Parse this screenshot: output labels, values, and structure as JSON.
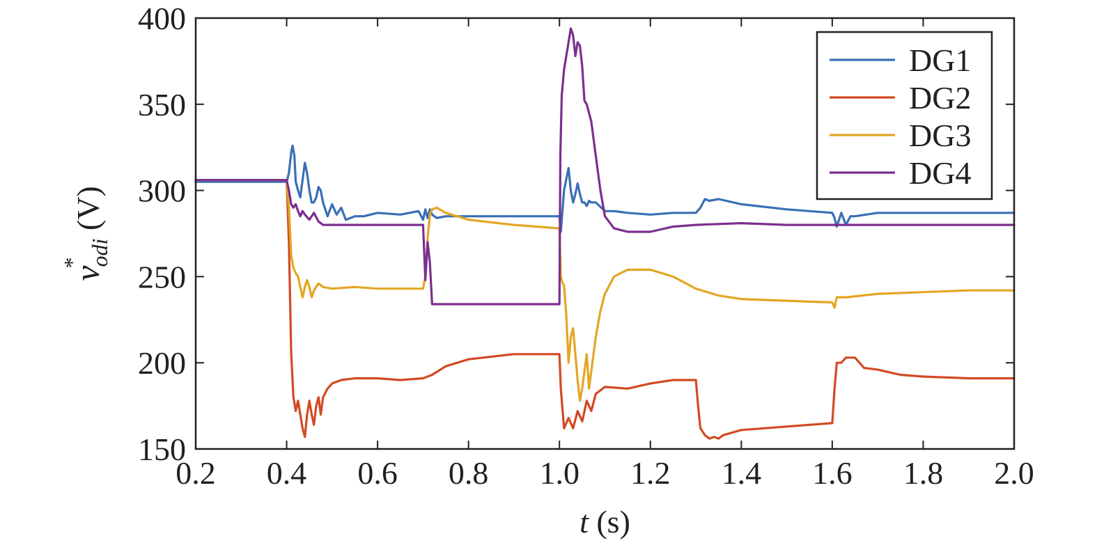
{
  "chart_data": {
    "type": "line",
    "title": "",
    "xlabel": {
      "var": "t",
      "unit": " (s)"
    },
    "ylabel": {
      "var": "v",
      "sup": "*",
      "sub": "odi",
      "unit": " (V)"
    },
    "xlim": [
      0.2,
      2.0
    ],
    "ylim": [
      150,
      400
    ],
    "xticks": [
      "0.2",
      "0.4",
      "0.6",
      "0.8",
      "1.0",
      "1.2",
      "1.4",
      "1.6",
      "1.8",
      "2.0"
    ],
    "yticks": [
      "150",
      "200",
      "250",
      "300",
      "350",
      "400"
    ],
    "grid": false,
    "legend": "top-right",
    "series": [
      {
        "name": "DG1",
        "color": "#3a6fb4",
        "x": [
          0.2,
          0.4,
          0.405,
          0.41,
          0.413,
          0.417,
          0.42,
          0.425,
          0.43,
          0.435,
          0.44,
          0.445,
          0.45,
          0.455,
          0.46,
          0.465,
          0.47,
          0.475,
          0.48,
          0.49,
          0.5,
          0.51,
          0.52,
          0.53,
          0.55,
          0.57,
          0.6,
          0.65,
          0.69,
          0.7,
          0.705,
          0.71,
          0.715,
          0.72,
          0.73,
          0.75,
          0.8,
          0.9,
          1.0,
          1.003,
          1.01,
          1.02,
          1.025,
          1.03,
          1.035,
          1.04,
          1.045,
          1.05,
          1.055,
          1.06,
          1.065,
          1.07,
          1.08,
          1.1,
          1.12,
          1.15,
          1.2,
          1.25,
          1.3,
          1.31,
          1.32,
          1.33,
          1.35,
          1.4,
          1.5,
          1.6,
          1.605,
          1.61,
          1.62,
          1.63,
          1.64,
          1.65,
          1.7,
          1.8,
          2.0
        ],
        "y": [
          305,
          305,
          310,
          322,
          326,
          320,
          305,
          300,
          296,
          306,
          316,
          310,
          300,
          293,
          293,
          296,
          302,
          300,
          293,
          285,
          292,
          286,
          290,
          283,
          285,
          285,
          287,
          286,
          288,
          283,
          289,
          284,
          289,
          286,
          284,
          285,
          285,
          285,
          285,
          276,
          300,
          313,
          300,
          293,
          298,
          304,
          298,
          293,
          293,
          291,
          294,
          293,
          293,
          288,
          288,
          287,
          286,
          287,
          287,
          290,
          295,
          294,
          295,
          292,
          289,
          287,
          284,
          279,
          287,
          280,
          285,
          285,
          287,
          287,
          287
        ]
      },
      {
        "name": "DG2",
        "color": "#d24a24",
        "x": [
          0.2,
          0.4,
          0.405,
          0.41,
          0.415,
          0.42,
          0.425,
          0.43,
          0.435,
          0.44,
          0.445,
          0.45,
          0.455,
          0.46,
          0.465,
          0.47,
          0.475,
          0.48,
          0.49,
          0.5,
          0.52,
          0.55,
          0.6,
          0.65,
          0.7,
          0.72,
          0.75,
          0.8,
          0.9,
          1.0,
          1.003,
          1.01,
          1.02,
          1.03,
          1.04,
          1.05,
          1.06,
          1.07,
          1.08,
          1.1,
          1.15,
          1.2,
          1.25,
          1.3,
          1.305,
          1.31,
          1.32,
          1.33,
          1.34,
          1.35,
          1.36,
          1.4,
          1.5,
          1.6,
          1.605,
          1.61,
          1.62,
          1.63,
          1.64,
          1.65,
          1.67,
          1.7,
          1.75,
          1.8,
          1.9,
          2.0
        ],
        "y": [
          306,
          306,
          270,
          205,
          180,
          172,
          178,
          170,
          162,
          157,
          170,
          178,
          170,
          164,
          175,
          180,
          170,
          180,
          185,
          188,
          190,
          191,
          191,
          190,
          191,
          193,
          198,
          202,
          205,
          205,
          185,
          162,
          168,
          162,
          172,
          166,
          178,
          172,
          182,
          186,
          185,
          188,
          190,
          190,
          175,
          162,
          158,
          156,
          157,
          156,
          158,
          161,
          163,
          165,
          185,
          200,
          200,
          203,
          203,
          203,
          197,
          196,
          193,
          192,
          191,
          191
        ]
      },
      {
        "name": "DG3",
        "color": "#e3a623",
        "x": [
          0.2,
          0.4,
          0.405,
          0.41,
          0.415,
          0.42,
          0.425,
          0.43,
          0.435,
          0.44,
          0.445,
          0.45,
          0.455,
          0.46,
          0.47,
          0.48,
          0.5,
          0.55,
          0.6,
          0.65,
          0.7,
          0.705,
          0.71,
          0.715,
          0.72,
          0.73,
          0.75,
          0.8,
          0.9,
          1.0,
          1.003,
          1.007,
          1.01,
          1.015,
          1.02,
          1.025,
          1.03,
          1.035,
          1.04,
          1.045,
          1.05,
          1.055,
          1.06,
          1.065,
          1.07,
          1.08,
          1.09,
          1.1,
          1.12,
          1.15,
          1.2,
          1.25,
          1.3,
          1.35,
          1.4,
          1.5,
          1.6,
          1.605,
          1.61,
          1.63,
          1.7,
          1.8,
          1.9,
          2.0
        ],
        "y": [
          306,
          306,
          290,
          262,
          255,
          252,
          250,
          244,
          238,
          244,
          248,
          244,
          238,
          242,
          246,
          244,
          243,
          244,
          243,
          243,
          243,
          250,
          272,
          286,
          289,
          290,
          287,
          283,
          280,
          278,
          250,
          246,
          245,
          228,
          200,
          215,
          220,
          205,
          190,
          178,
          185,
          195,
          205,
          185,
          195,
          215,
          230,
          240,
          250,
          254,
          254,
          250,
          243,
          239,
          237,
          236,
          235,
          232,
          238,
          238,
          240,
          241,
          242,
          242
        ]
      },
      {
        "name": "DG4",
        "color": "#7b2f8e",
        "x": [
          0.2,
          0.4,
          0.405,
          0.41,
          0.415,
          0.42,
          0.425,
          0.43,
          0.435,
          0.44,
          0.45,
          0.46,
          0.47,
          0.48,
          0.5,
          0.55,
          0.6,
          0.7,
          0.705,
          0.71,
          0.715,
          0.72,
          0.725,
          0.73,
          0.75,
          0.8,
          0.9,
          1.0,
          1.002,
          1.005,
          1.01,
          1.02,
          1.025,
          1.03,
          1.035,
          1.04,
          1.045,
          1.05,
          1.055,
          1.06,
          1.07,
          1.08,
          1.09,
          1.1,
          1.12,
          1.15,
          1.2,
          1.25,
          1.3,
          1.4,
          1.5,
          1.6,
          1.7,
          1.8,
          1.9,
          2.0
        ],
        "y": [
          306,
          306,
          300,
          292,
          290,
          292,
          288,
          285,
          288,
          286,
          283,
          287,
          282,
          280,
          280,
          280,
          280,
          280,
          248,
          270,
          258,
          234,
          234,
          234,
          234,
          234,
          234,
          234,
          320,
          355,
          370,
          386,
          394,
          390,
          378,
          386,
          384,
          372,
          352,
          350,
          340,
          320,
          300,
          285,
          278,
          276,
          276,
          279,
          280,
          281,
          280,
          280,
          280,
          280,
          280,
          280
        ]
      }
    ]
  }
}
